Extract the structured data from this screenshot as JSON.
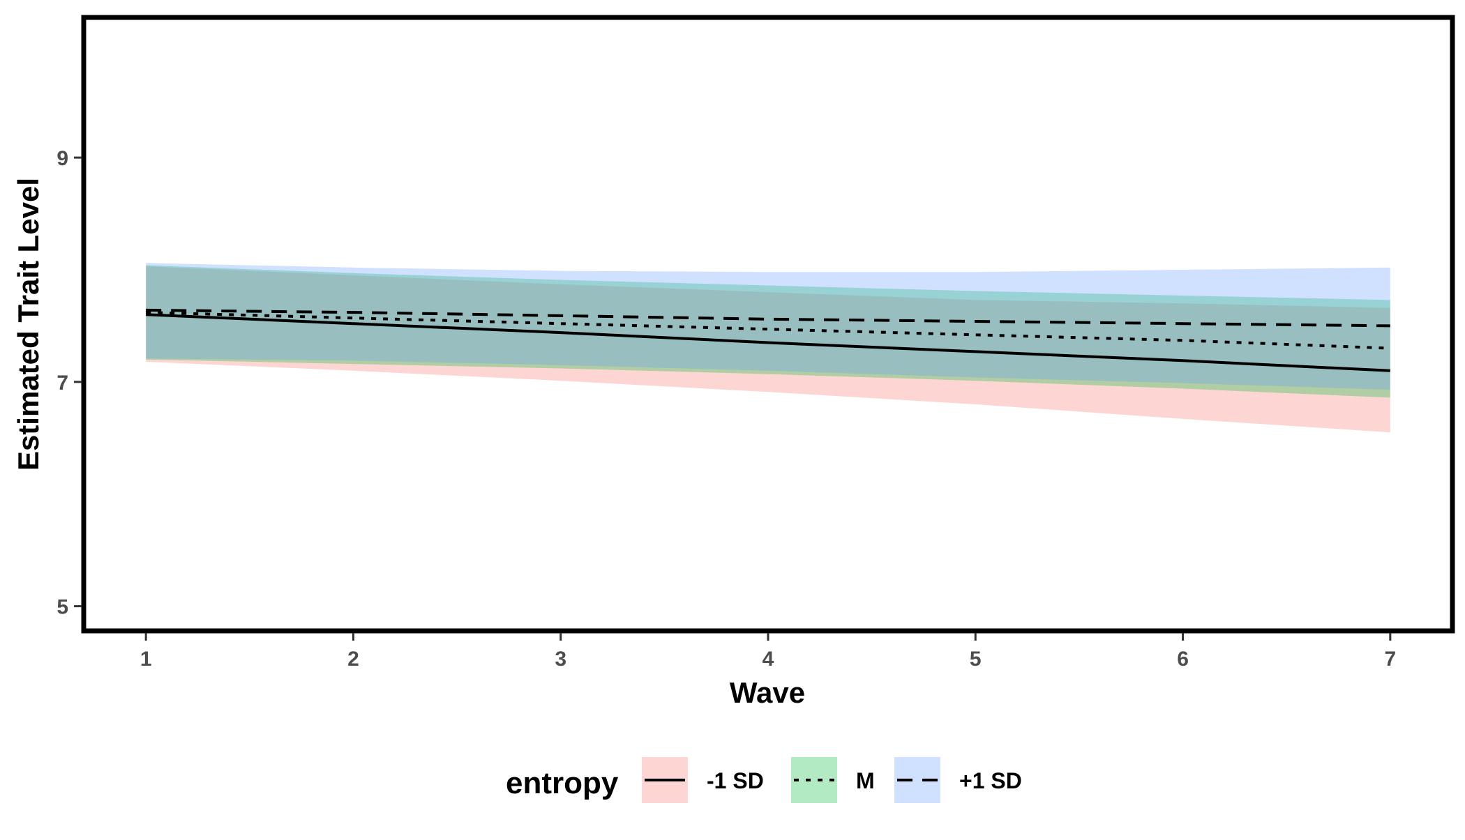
{
  "chart_data": {
    "type": "line",
    "xlabel": "Wave",
    "ylabel": "Estimated Trait Level",
    "x": [
      1,
      2,
      3,
      4,
      5,
      6,
      7
    ],
    "xlim": [
      0.7,
      7.3
    ],
    "ylim": [
      4.78,
      10.25
    ],
    "x_ticks": [
      "1",
      "2",
      "3",
      "4",
      "5",
      "6",
      "7"
    ],
    "y_ticks": [
      "5",
      "7",
      "9"
    ],
    "grid": false,
    "legend_position": "bottom",
    "legend_title": "entropy",
    "series": [
      {
        "name": "-1 SD",
        "linestyle": "solid",
        "fill_color": "#f8766d",
        "values": [
          7.6,
          7.52,
          7.44,
          7.35,
          7.27,
          7.19,
          7.1
        ],
        "lower": [
          7.18,
          7.1,
          7.01,
          6.91,
          6.8,
          6.67,
          6.55
        ],
        "upper": [
          8.03,
          7.95,
          7.87,
          7.8,
          7.73,
          7.7,
          7.66
        ]
      },
      {
        "name": "M",
        "linestyle": "dotted",
        "fill_color": "#00ba38",
        "values": [
          7.62,
          7.57,
          7.52,
          7.47,
          7.42,
          7.37,
          7.3
        ],
        "lower": [
          7.2,
          7.16,
          7.12,
          7.07,
          7.01,
          6.94,
          6.86
        ],
        "upper": [
          8.04,
          7.97,
          7.91,
          7.86,
          7.81,
          7.77,
          7.73
        ]
      },
      {
        "name": "+1 SD",
        "linestyle": "dashed",
        "fill_color": "#619cff",
        "values": [
          7.64,
          7.62,
          7.59,
          7.56,
          7.54,
          7.52,
          7.5
        ],
        "lower": [
          7.21,
          7.19,
          7.15,
          7.1,
          7.04,
          6.99,
          6.93
        ],
        "upper": [
          8.06,
          8.02,
          7.99,
          7.98,
          7.98,
          8.0,
          8.02
        ]
      }
    ]
  },
  "colors": {
    "ribbon_low": "#f8766d",
    "ribbon_mid": "#00ba38",
    "ribbon_high": "#619cff",
    "line": "#000000",
    "tick_text": "#4d4d4d"
  }
}
